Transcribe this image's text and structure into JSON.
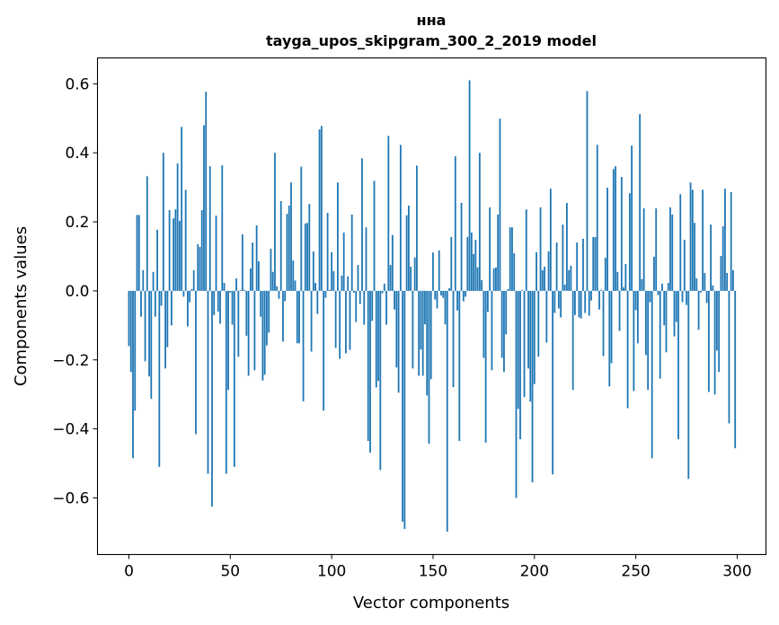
{
  "chart_data": {
    "type": "bar",
    "title": "нна",
    "subtitle": "tayga_upos_skipgram_300_2_2019 model",
    "xlabel": "Vector components",
    "ylabel": "Components values",
    "xlim": [
      -15.5,
      314.2
    ],
    "ylim": [
      -0.764,
      0.675
    ],
    "xticks": [
      0,
      50,
      100,
      150,
      200,
      250,
      300
    ],
    "xtick_labels": [
      "0",
      "50",
      "100",
      "150",
      "200",
      "250",
      "300"
    ],
    "yticks": [
      -0.6,
      -0.4,
      -0.2,
      0.0,
      0.2,
      0.4,
      0.6
    ],
    "ytick_labels": [
      "−0.6",
      "−0.4",
      "−0.2",
      "0.0",
      "0.2",
      "0.4",
      "0.6"
    ],
    "grid": false,
    "color": "#1f77b4",
    "values": [
      -0.16,
      -0.235,
      -0.485,
      -0.347,
      0.22,
      0.22,
      -0.075,
      0.06,
      -0.204,
      0.332,
      -0.248,
      -0.313,
      0.055,
      -0.075,
      0.177,
      -0.51,
      -0.043,
      0.4,
      -0.225,
      -0.163,
      0.234,
      -0.1,
      0.21,
      0.236,
      0.369,
      0.203,
      0.475,
      -0.017,
      0.293,
      -0.103,
      -0.033,
      0.005,
      0.06,
      -0.415,
      0.135,
      0.127,
      0.234,
      0.48,
      0.577,
      -0.53,
      0.361,
      -0.625,
      -0.07,
      0.218,
      -0.06,
      -0.095,
      0.364,
      0.023,
      -0.53,
      -0.287,
      -0.005,
      -0.098,
      -0.51,
      0.036,
      -0.191,
      0.002,
      0.164,
      0.003,
      -0.13,
      -0.246,
      0.065,
      0.14,
      -0.23,
      0.19,
      0.086,
      -0.075,
      -0.26,
      -0.243,
      -0.158,
      -0.121,
      0.122,
      0.055,
      0.4,
      0.013,
      -0.023,
      0.26,
      -0.147,
      -0.03,
      0.223,
      0.247,
      0.314,
      0.088,
      0.03,
      -0.152,
      -0.152,
      0.36,
      -0.32,
      0.195,
      0.197,
      0.252,
      -0.176,
      0.114,
      0.023,
      -0.067,
      0.468,
      0.478,
      -0.347,
      -0.02,
      0.226,
      0.003,
      0.112,
      0.057,
      -0.165,
      0.314,
      -0.197,
      0.044,
      0.169,
      -0.181,
      0.042,
      -0.171,
      0.221,
      -0.005,
      -0.09,
      0.075,
      -0.038,
      0.384,
      -0.098,
      0.184,
      -0.435,
      -0.469,
      -0.087,
      0.319,
      -0.28,
      -0.261,
      -0.519,
      -0.007,
      0.021,
      -0.098,
      0.449,
      0.075,
      0.162,
      -0.054,
      -0.222,
      -0.295,
      0.423,
      -0.669,
      -0.69,
      0.219,
      0.247,
      0.07,
      -0.225,
      0.097,
      0.363,
      -0.246,
      -0.17,
      -0.246,
      -0.097,
      -0.303,
      -0.443,
      -0.256,
      0.111,
      -0.025,
      -0.051,
      0.117,
      -0.013,
      -0.02,
      -0.097,
      -0.698,
      0.008,
      0.156,
      -0.279,
      0.39,
      -0.057,
      -0.435,
      0.255,
      -0.03,
      -0.017,
      0.156,
      0.61,
      0.169,
      0.107,
      0.148,
      0.068,
      0.4,
      0.031,
      -0.194,
      -0.44,
      -0.061,
      0.242,
      -0.23,
      0.065,
      0.068,
      0.221,
      0.499,
      -0.194,
      -0.235,
      -0.126,
      0.005,
      0.184,
      0.184,
      0.109,
      -0.6,
      -0.342,
      -0.43,
      0.003,
      -0.308,
      0.236,
      -0.225,
      -0.321,
      -0.555,
      -0.27,
      0.112,
      -0.191,
      0.242,
      0.06,
      0.07,
      -0.15,
      0.114,
      0.296,
      -0.532,
      -0.064,
      0.14,
      -0.051,
      -0.077,
      0.192,
      0.018,
      0.255,
      0.06,
      0.073,
      -0.287,
      -0.07,
      0.14,
      -0.077,
      -0.08,
      0.151,
      -0.064,
      0.579,
      -0.072,
      -0.028,
      0.156,
      0.156,
      0.423,
      -0.054,
      0.003,
      -0.189,
      0.096,
      0.299,
      -0.277,
      -0.21,
      0.353,
      0.361,
      0.055,
      -0.116,
      0.33,
      0.01,
      0.078,
      -0.34,
      0.283,
      0.421,
      -0.29,
      -0.056,
      -0.152,
      0.512,
      0.034,
      0.239,
      -0.186,
      -0.287,
      -0.033,
      -0.485,
      0.099,
      0.239,
      -0.012,
      -0.254,
      0.021,
      -0.1,
      -0.178,
      0.023,
      0.242,
      0.221,
      -0.132,
      -0.09,
      -0.43,
      0.28,
      -0.033,
      0.148,
      -0.041,
      -0.545,
      0.314,
      0.293,
      0.197,
      0.036,
      -0.113,
      -0.005,
      0.293,
      0.052,
      -0.035,
      -0.293,
      0.192,
      0.016,
      -0.3,
      -0.173,
      -0.235,
      0.101,
      0.187,
      0.296,
      0.052,
      -0.384,
      0.286,
      0.06,
      -0.456
    ]
  }
}
